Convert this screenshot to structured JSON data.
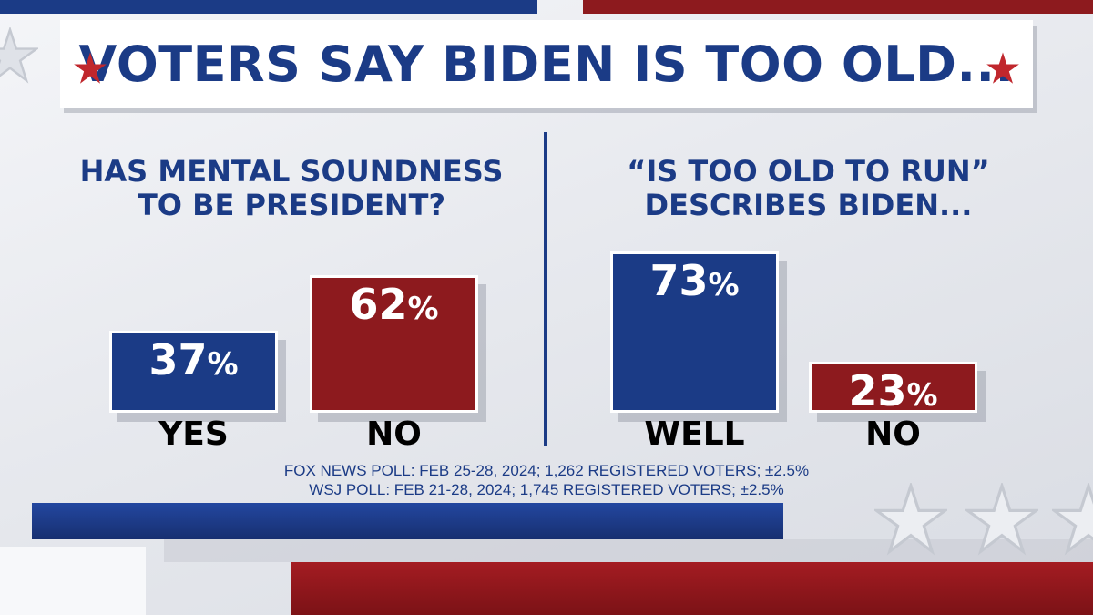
{
  "title": "VOTERS SAY BIDEN IS TOO OLD...",
  "colors": {
    "blue": "#1b3b86",
    "red": "#8d1a1e",
    "star_red": "#c0272d"
  },
  "icons": {
    "title_stars": "star-icon"
  },
  "sources": [
    "FOX NEWS POLL: FEB 25-28, 2024; 1,262 REGISTERED VOTERS; ±2.5%",
    "WSJ POLL: FEB 21-28, 2024; 1,745 REGISTERED VOTERS; ±2.5%"
  ],
  "chart_data": [
    {
      "type": "bar",
      "title": "HAS MENTAL SOUNDNESS TO BE PRESIDENT?",
      "title_lines": [
        "HAS MENTAL SOUNDNESS",
        "TO BE PRESIDENT?"
      ],
      "categories": [
        "YES",
        "NO"
      ],
      "values": [
        37,
        62
      ],
      "value_labels": [
        "37",
        "62"
      ],
      "unit": "%",
      "bar_colors": [
        "#1b3b86",
        "#8d1a1e"
      ]
    },
    {
      "type": "bar",
      "title": "“IS TOO OLD TO RUN” DESCRIBES BIDEN...",
      "title_lines": [
        "“IS TOO OLD TO RUN”",
        "DESCRIBES BIDEN..."
      ],
      "categories": [
        "WELL",
        "NO"
      ],
      "values": [
        73,
        23
      ],
      "value_labels": [
        "73",
        "23"
      ],
      "unit": "%",
      "bar_colors": [
        "#1b3b86",
        "#8d1a1e"
      ]
    }
  ]
}
